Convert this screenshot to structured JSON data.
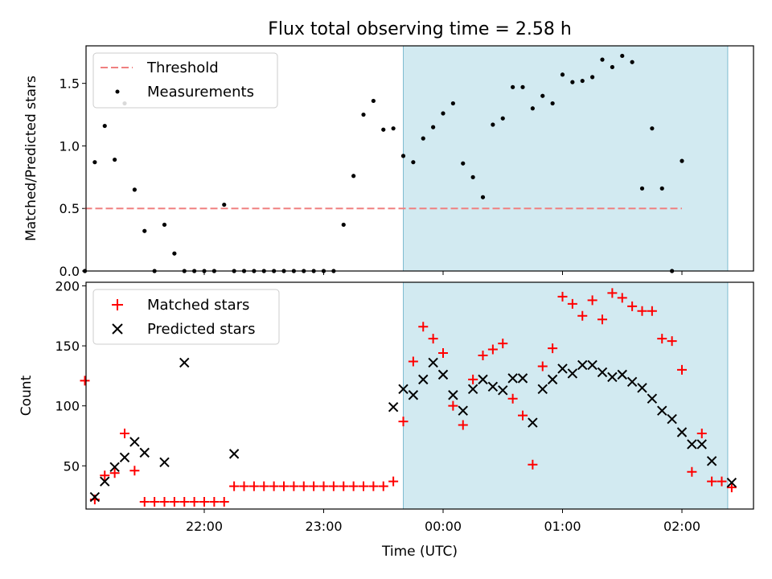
{
  "chart_data": [
    {
      "type": "scatter",
      "title": "Flux total observing time = 2.58 h",
      "xlabel": "",
      "ylabel": "Matched/Predicted stars",
      "xlim_minutes_after_2100": [
        -32,
        136
      ],
      "ylim": [
        0,
        1.8
      ],
      "yticks": [
        0.0,
        0.5,
        1.0,
        1.5
      ],
      "ytick_labels": [
        "0.0",
        "0.5",
        "1.0",
        "1.5"
      ],
      "shaded_region_minutes_after_2100": [
        -30,
        138
      ],
      "legend": {
        "placement": "upper left",
        "entries": [
          "Threshold",
          "Measurements"
        ]
      },
      "threshold": {
        "name": "Threshold",
        "value": 0.5,
        "color": "#f08080"
      },
      "series": [
        {
          "name": "Measurements",
          "color": "#000000",
          "points": [
            [
              -22.0,
              0.0
            ],
            [
              -20.7,
              0.87
            ],
            [
              -19.3,
              1.16
            ],
            [
              -18.0,
              0.89
            ],
            [
              -16.7,
              1.34
            ],
            [
              -15.3,
              0.65
            ],
            [
              -14.0,
              0.32
            ],
            [
              -12.7,
              0.0
            ],
            [
              -11.3,
              0.37
            ],
            [
              -10.0,
              0.14
            ],
            [
              -8.7,
              0.0
            ],
            [
              -7.3,
              0.0
            ],
            [
              -6.0,
              0.0
            ],
            [
              -4.7,
              0.0
            ],
            [
              -3.3,
              0.53
            ],
            [
              -2.0,
              0.0
            ],
            [
              -0.7,
              0.0
            ],
            [
              0.7,
              0.0
            ],
            [
              2.0,
              0.0
            ],
            [
              3.3,
              0.0
            ],
            [
              4.7,
              0.0
            ],
            [
              6.0,
              0.0
            ],
            [
              7.3,
              0.0
            ],
            [
              8.7,
              0.0
            ],
            [
              10.0,
              0.0
            ],
            [
              11.3,
              0.0
            ],
            [
              12.7,
              0.37
            ],
            [
              14.0,
              0.76
            ],
            [
              15.3,
              1.25
            ],
            [
              16.7,
              1.36
            ],
            [
              18.0,
              1.13
            ],
            [
              19.3,
              1.14
            ],
            [
              20.7,
              0.92
            ],
            [
              22.0,
              0.87
            ],
            [
              23.3,
              1.06
            ],
            [
              24.7,
              1.15
            ],
            [
              26.0,
              1.26
            ],
            [
              27.3,
              1.34
            ],
            [
              28.7,
              0.86
            ],
            [
              30.0,
              0.75
            ],
            [
              31.3,
              0.59
            ],
            [
              32.7,
              1.17
            ],
            [
              34.0,
              1.22
            ],
            [
              35.3,
              1.47
            ],
            [
              36.7,
              1.47
            ],
            [
              38.0,
              1.3
            ],
            [
              39.3,
              1.4
            ],
            [
              40.7,
              1.34
            ],
            [
              42.0,
              1.57
            ],
            [
              43.3,
              1.51
            ],
            [
              44.7,
              1.52
            ],
            [
              46.0,
              1.55
            ],
            [
              47.3,
              1.69
            ],
            [
              48.7,
              1.63
            ],
            [
              50.0,
              1.72
            ],
            [
              51.3,
              1.67
            ],
            [
              52.7,
              0.66
            ],
            [
              54.0,
              1.14
            ],
            [
              55.3,
              0.66
            ],
            [
              56.7,
              0.0
            ],
            [
              58.0,
              0.88
            ]
          ]
        }
      ]
    },
    {
      "type": "scatter",
      "title": "",
      "xlabel": "Time (UTC)",
      "ylabel": "Count",
      "ylim": [
        14,
        203
      ],
      "yticks": [
        50,
        100,
        150,
        200
      ],
      "ytick_labels": [
        "50",
        "100",
        "150",
        "200"
      ],
      "xticks_minutes_after_2100": [
        60,
        120,
        180,
        240,
        300
      ],
      "xtick_labels": [
        "22:00",
        "23:00",
        "00:00",
        "01:00",
        "02:00"
      ],
      "legend": {
        "placement": "upper left",
        "entries": [
          "Matched stars",
          "Predicted stars"
        ]
      },
      "series": [
        {
          "name": "Matched stars",
          "marker": "+",
          "color": "#ff0000",
          "points": [
            [
              0,
              121
            ],
            [
              5,
              22
            ],
            [
              10,
              42
            ],
            [
              15,
              44
            ],
            [
              20,
              77
            ],
            [
              25,
              46
            ],
            [
              30,
              20
            ],
            [
              35,
              20
            ],
            [
              40,
              20
            ],
            [
              45,
              20
            ],
            [
              50,
              20
            ],
            [
              55,
              20
            ],
            [
              60,
              20
            ],
            [
              65,
              20
            ],
            [
              70,
              20
            ],
            [
              75,
              33
            ],
            [
              80,
              33
            ],
            [
              85,
              33
            ],
            [
              90,
              33
            ],
            [
              95,
              33
            ],
            [
              100,
              33
            ],
            [
              105,
              33
            ],
            [
              110,
              33
            ],
            [
              115,
              33
            ],
            [
              120,
              33
            ],
            [
              125,
              33
            ],
            [
              130,
              33
            ],
            [
              135,
              33
            ],
            [
              140,
              33
            ],
            [
              145,
              33
            ],
            [
              150,
              33
            ],
            [
              155,
              37
            ],
            [
              160,
              87
            ],
            [
              165,
              137
            ],
            [
              170,
              166
            ],
            [
              175,
              156
            ],
            [
              180,
              144
            ],
            [
              185,
              100
            ],
            [
              190,
              84
            ],
            [
              195,
              122
            ],
            [
              200,
              142
            ],
            [
              205,
              147
            ],
            [
              210,
              152
            ],
            [
              215,
              106
            ],
            [
              220,
              92
            ],
            [
              225,
              51
            ],
            [
              230,
              133
            ],
            [
              235,
              148
            ],
            [
              240,
              191
            ],
            [
              245,
              185
            ],
            [
              250,
              175
            ],
            [
              255,
              188
            ],
            [
              260,
              172
            ],
            [
              265,
              194
            ],
            [
              270,
              190
            ],
            [
              275,
              183
            ],
            [
              280,
              179
            ],
            [
              285,
              179
            ],
            [
              290,
              156
            ],
            [
              295,
              154
            ],
            [
              300,
              130
            ],
            [
              305,
              45
            ],
            [
              310,
              77
            ],
            [
              315,
              37
            ],
            [
              320,
              37
            ],
            [
              325,
              32
            ]
          ]
        },
        {
          "name": "Predicted stars",
          "marker": "x",
          "color": "#000000",
          "points": [
            [
              5,
              24
            ],
            [
              10,
              37
            ],
            [
              15,
              49
            ],
            [
              20,
              57
            ],
            [
              25,
              70
            ],
            [
              30,
              61
            ],
            [
              40,
              53
            ],
            [
              50,
              136
            ],
            [
              75,
              60
            ],
            [
              155,
              99
            ],
            [
              160,
              114
            ],
            [
              165,
              109
            ],
            [
              170,
              122
            ],
            [
              175,
              136
            ],
            [
              180,
              126
            ],
            [
              185,
              109
            ],
            [
              190,
              96
            ],
            [
              195,
              114
            ],
            [
              200,
              122
            ],
            [
              205,
              116
            ],
            [
              210,
              113
            ],
            [
              215,
              123
            ],
            [
              220,
              123
            ],
            [
              225,
              86
            ],
            [
              230,
              114
            ],
            [
              235,
              122
            ],
            [
              240,
              131
            ],
            [
              245,
              127
            ],
            [
              250,
              134
            ],
            [
              255,
              134
            ],
            [
              260,
              128
            ],
            [
              265,
              124
            ],
            [
              270,
              126
            ],
            [
              275,
              120
            ],
            [
              280,
              115
            ],
            [
              285,
              106
            ],
            [
              290,
              96
            ],
            [
              295,
              89
            ],
            [
              300,
              78
            ],
            [
              305,
              68
            ],
            [
              310,
              68
            ],
            [
              315,
              54
            ],
            [
              325,
              36
            ]
          ]
        }
      ],
      "shaded_region_minutes_after_2100": [
        160,
        323
      ]
    }
  ],
  "colors": {
    "shade": "#add8e6",
    "threshold": "#f08080",
    "matched": "#ff0000",
    "predicted": "#000000"
  }
}
